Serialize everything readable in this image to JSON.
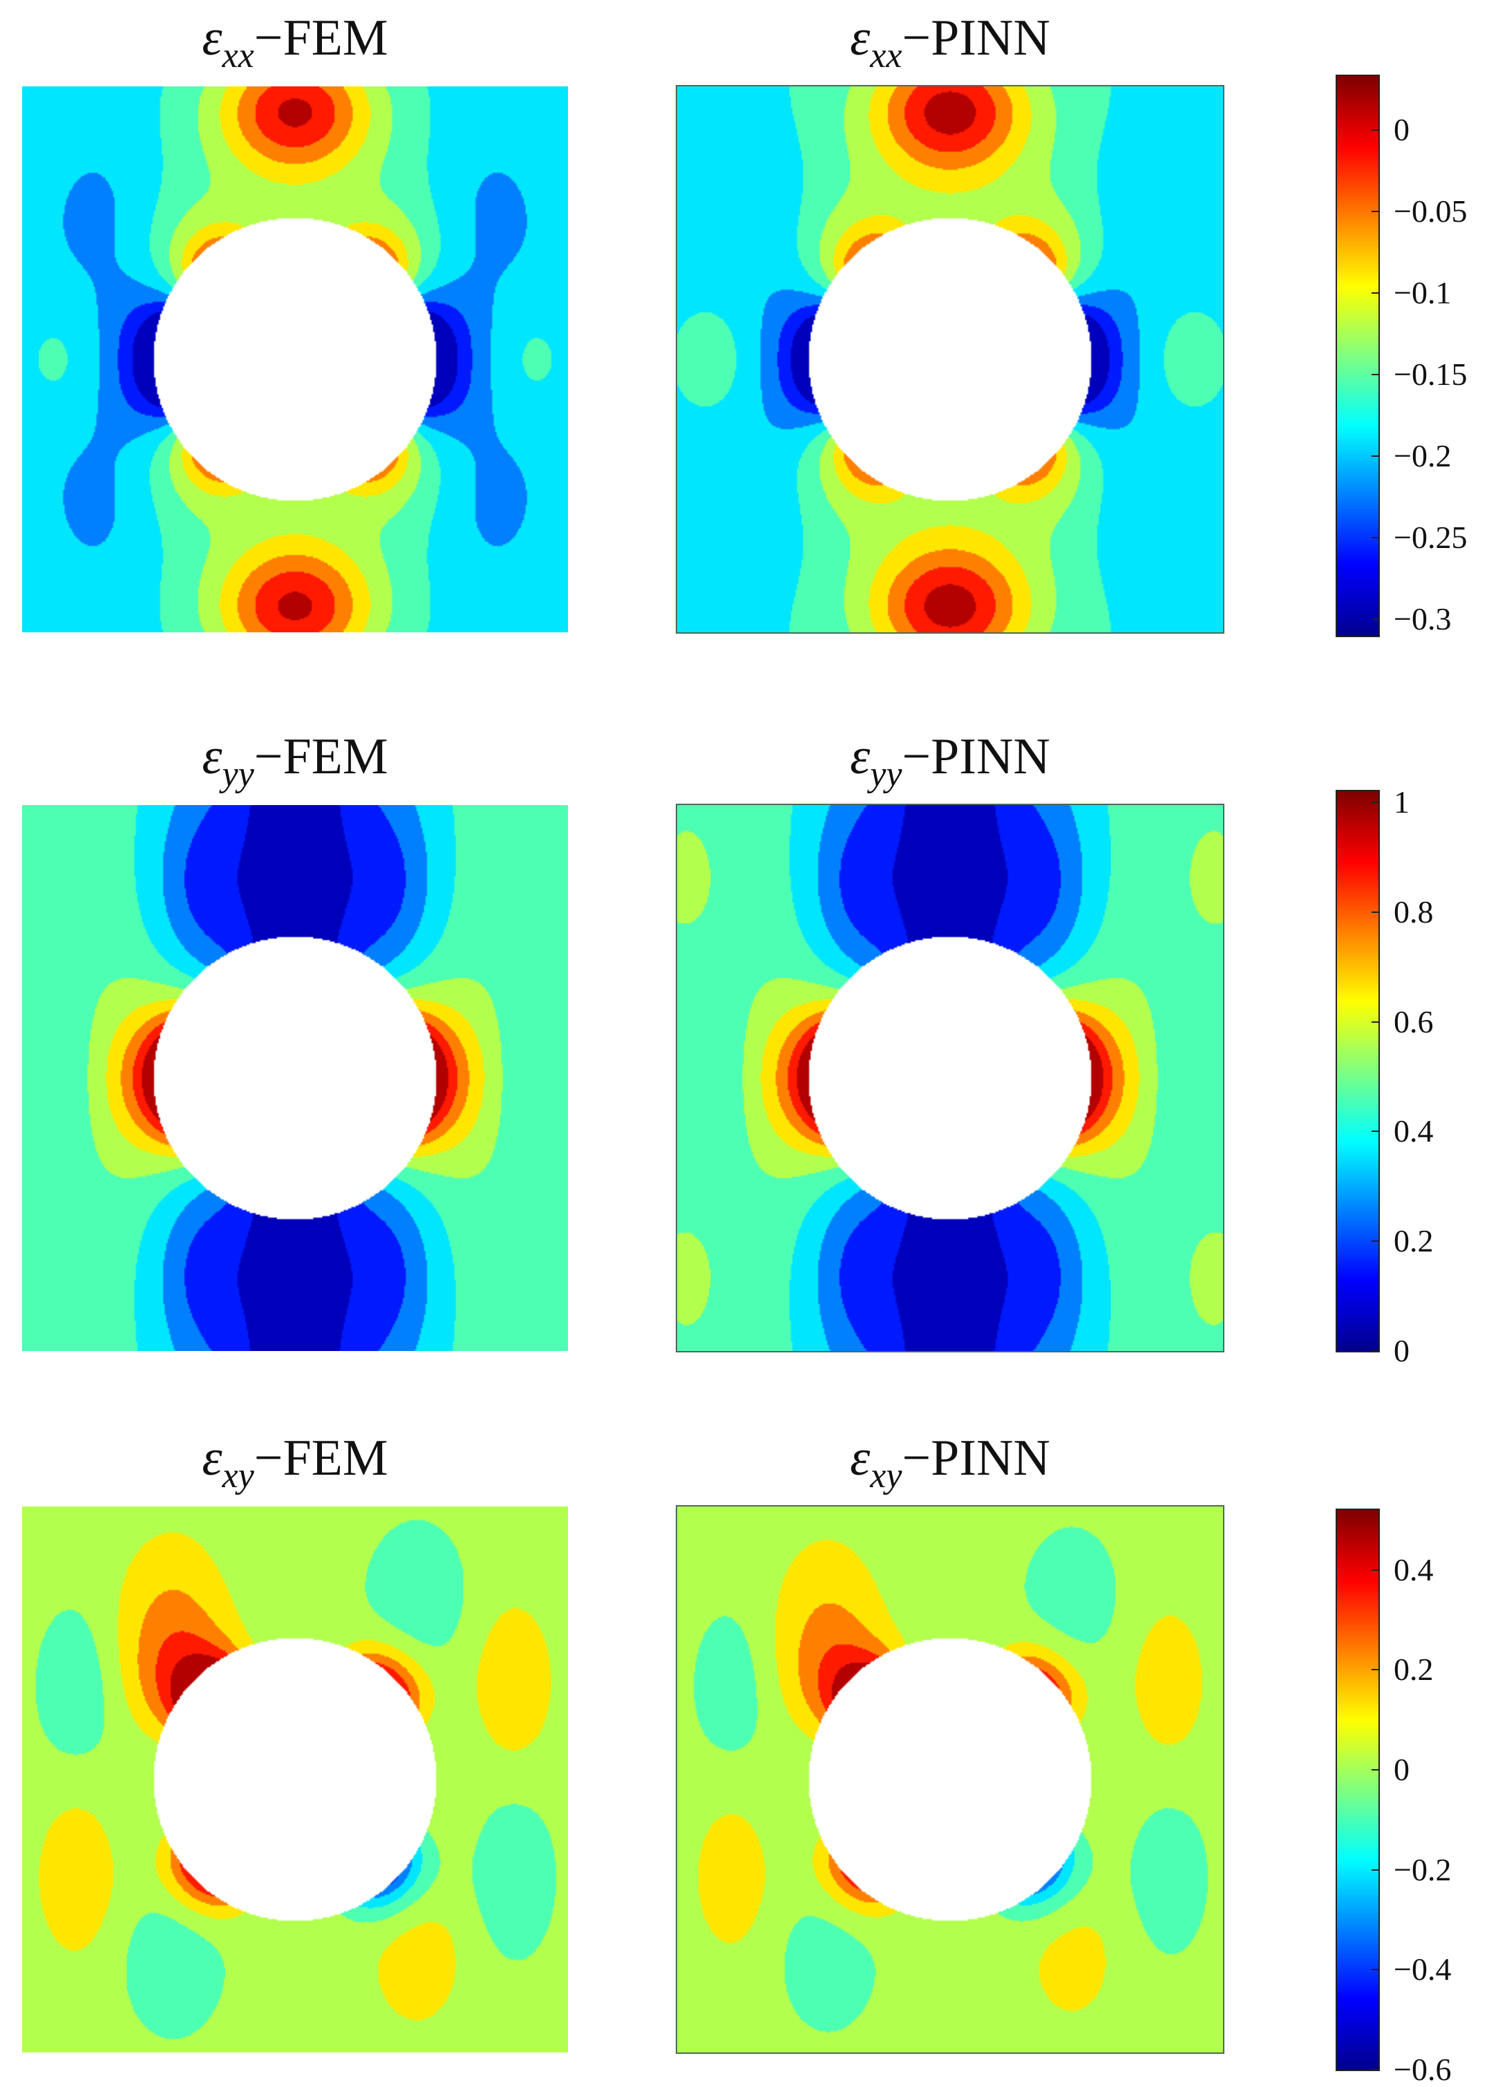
{
  "colors": {
    "jet": [
      "#00008f",
      "#0000ff",
      "#0080ff",
      "#00ffff",
      "#80ff80",
      "#ffff00",
      "#ff8000",
      "#ff0000",
      "#800000"
    ],
    "background": "#ffffff",
    "frame": "#4a6a5a"
  },
  "chart_data": [
    {
      "type": "heatmap",
      "title": "ε_xx−FEM",
      "title_parts": {
        "symbol": "ε",
        "subscript": "xx",
        "suffix": "−FEM"
      },
      "field": "xx",
      "method": "FEM",
      "colorbar": {
        "min": -0.31,
        "max": 0.033,
        "ticks": [
          0,
          -0.05,
          -0.1,
          -0.15,
          -0.2,
          -0.25,
          -0.3
        ],
        "tick_labels": [
          "0",
          "−0.05",
          "−0.1",
          "−0.15",
          "−0.2",
          "−0.25",
          "−0.3"
        ]
      },
      "notes": "square plate with central circular hole; peak values above and below the hole, minimum at left/right hole edges"
    },
    {
      "type": "heatmap",
      "title": "ε_xx−PINN",
      "title_parts": {
        "symbol": "ε",
        "subscript": "xx",
        "suffix": "−PINN"
      },
      "field": "xx",
      "method": "PINN",
      "colorbar": {
        "min": -0.31,
        "max": 0.033,
        "ticks": [
          0,
          -0.05,
          -0.1,
          -0.15,
          -0.2,
          -0.25,
          -0.3
        ],
        "tick_labels": [
          "0",
          "−0.05",
          "−0.1",
          "−0.15",
          "−0.2",
          "−0.25",
          "−0.3"
        ]
      }
    },
    {
      "type": "heatmap",
      "title": "ε_yy−FEM",
      "title_parts": {
        "symbol": "ε",
        "subscript": "yy",
        "suffix": "−FEM"
      },
      "field": "yy",
      "method": "FEM",
      "colorbar": {
        "min": 0,
        "max": 1.02,
        "ticks": [
          1,
          0.8,
          0.6,
          0.4,
          0.2,
          0
        ],
        "tick_labels": [
          "1",
          "0.8",
          "0.6",
          "0.4",
          "0.2",
          "0"
        ]
      },
      "notes": "maximum at left/right edges of the hole, minimum in bands above and below the hole"
    },
    {
      "type": "heatmap",
      "title": "ε_yy−PINN",
      "title_parts": {
        "symbol": "ε",
        "subscript": "yy",
        "suffix": "−PINN"
      },
      "field": "yy",
      "method": "PINN",
      "colorbar": {
        "min": 0,
        "max": 1.02,
        "ticks": [
          1,
          0.8,
          0.6,
          0.4,
          0.2,
          0
        ],
        "tick_labels": [
          "1",
          "0.8",
          "0.6",
          "0.4",
          "0.2",
          "0"
        ]
      }
    },
    {
      "type": "heatmap",
      "title": "ε_xy−FEM",
      "title_parts": {
        "symbol": "ε",
        "subscript": "xy",
        "suffix": "−FEM"
      },
      "field": "xy",
      "method": "FEM",
      "colorbar": {
        "min": -0.6,
        "max": 0.52,
        "ticks": [
          0.4,
          0.2,
          0,
          -0.2,
          -0.4,
          -0.6
        ],
        "tick_labels": [
          "0.4",
          "0.2",
          "0",
          "−0.2",
          "−0.4",
          "−0.6"
        ]
      },
      "notes": "antisymmetric lobes around the hole; positive upper-left and lower-right, negative upper-right and lower-left"
    },
    {
      "type": "heatmap",
      "title": "ε_xy−PINN",
      "title_parts": {
        "symbol": "ε",
        "subscript": "xy",
        "suffix": "−PINN"
      },
      "field": "xy",
      "method": "PINN",
      "colorbar": {
        "min": -0.6,
        "max": 0.52,
        "ticks": [
          0.4,
          0.2,
          0,
          -0.2,
          -0.4,
          -0.6
        ],
        "tick_labels": [
          "0.4",
          "0.2",
          "0",
          "−0.2",
          "−0.4",
          "−0.6"
        ]
      }
    }
  ]
}
